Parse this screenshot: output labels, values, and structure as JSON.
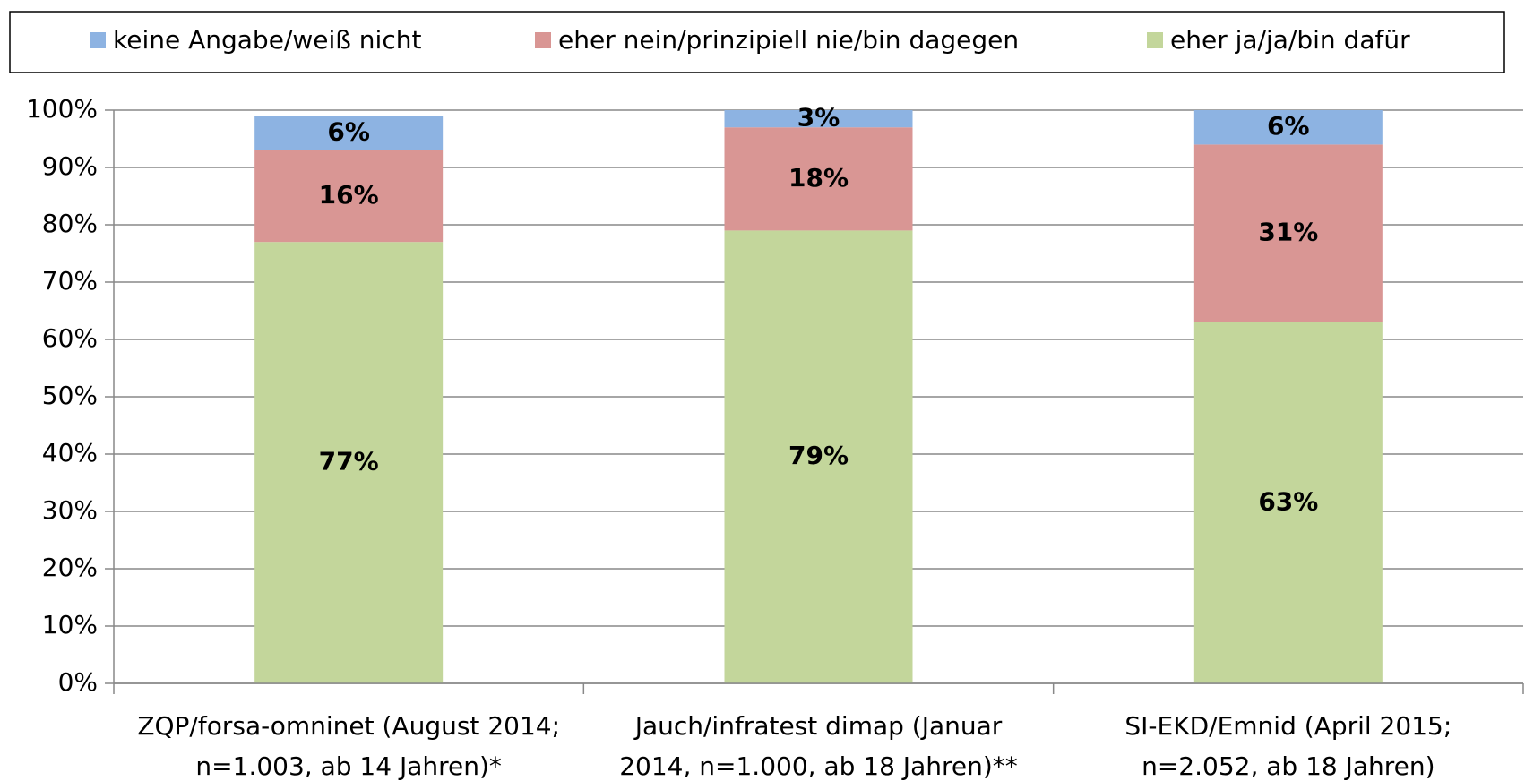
{
  "chart_data": {
    "type": "stacked_bar",
    "categories": [
      [
        "ZQP/forsa-omninet (August 2014;",
        "n=1.003, ab 14 Jahren)*"
      ],
      [
        "Jauch/infratest dimap (Januar",
        "2014, n=1.000, ab 18 Jahren)**"
      ],
      [
        "SI-EKD/Emnid (April 2015;",
        "n=2.052, ab 18 Jahren)"
      ]
    ],
    "series": [
      {
        "name": "keine Angabe/weiß nicht",
        "color": "#8db3e2",
        "values": [
          6,
          3,
          6
        ],
        "value_labels": [
          "6%",
          "3%",
          "6%"
        ]
      },
      {
        "name": "eher nein/prinzipiell nie/bin dagegen",
        "color": "#d99694",
        "values": [
          16,
          18,
          31
        ],
        "value_labels": [
          "16%",
          "18%",
          "31%"
        ]
      },
      {
        "name": "eher ja/ja/bin dafür",
        "color": "#c3d69b",
        "values": [
          77,
          79,
          63
        ],
        "value_labels": [
          "77%",
          "79%",
          "63%"
        ]
      }
    ],
    "ylim": [
      0,
      100
    ],
    "yticks": [
      {
        "value": 0,
        "label": "0%"
      },
      {
        "value": 10,
        "label": "10%"
      },
      {
        "value": 20,
        "label": "20%"
      },
      {
        "value": 30,
        "label": "30%"
      },
      {
        "value": 40,
        "label": "40%"
      },
      {
        "value": 50,
        "label": "50%"
      },
      {
        "value": 60,
        "label": "60%"
      },
      {
        "value": 70,
        "label": "70%"
      },
      {
        "value": 80,
        "label": "80%"
      },
      {
        "value": 90,
        "label": "90%"
      },
      {
        "value": 100,
        "label": "100%"
      }
    ],
    "grid": true,
    "legend": "top"
  }
}
